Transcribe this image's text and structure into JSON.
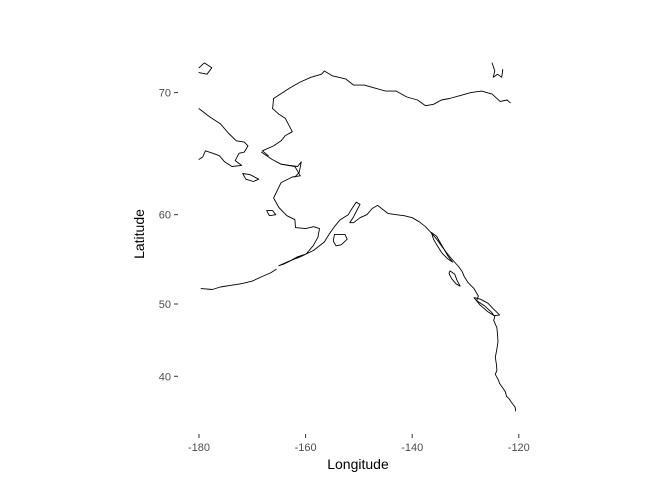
{
  "chart_data": {
    "type": "map",
    "projection": "mercator",
    "xlabel": "Longitude",
    "ylabel": "Latitude",
    "x_ticks": [
      -180,
      -160,
      -140,
      -120
    ],
    "y_ticks": [
      40,
      50,
      60,
      70
    ],
    "x_tick_labels": [
      "-180",
      "-160",
      "-140",
      "-120"
    ],
    "y_tick_labels": [
      "40",
      "50",
      "60",
      "70"
    ],
    "xlim": [
      -180,
      -120
    ],
    "ylim": [
      35,
      73
    ],
    "grid": false,
    "background": "#ffffff",
    "line_color": "#000000",
    "coastlines": [
      {
        "name": "alaska-mainland-pacific-coast",
        "lonlat": [
          [
            -168.3,
            65.6
          ],
          [
            -167.3,
            65.3
          ],
          [
            -166.3,
            65.0
          ],
          [
            -164.6,
            64.6
          ],
          [
            -162.0,
            64.4
          ],
          [
            -161.0,
            63.6
          ],
          [
            -162.5,
            63.5
          ],
          [
            -164.6,
            63.0
          ],
          [
            -166.0,
            61.6
          ],
          [
            -165.0,
            60.7
          ],
          [
            -163.5,
            59.9
          ],
          [
            -162.0,
            59.5
          ],
          [
            -161.9,
            58.7
          ],
          [
            -160.0,
            58.6
          ],
          [
            -158.5,
            58.8
          ],
          [
            -157.4,
            58.6
          ],
          [
            -157.7,
            57.7
          ],
          [
            -158.6,
            56.8
          ],
          [
            -159.9,
            55.9
          ],
          [
            -161.5,
            55.6
          ],
          [
            -163.0,
            55.1
          ],
          [
            -164.0,
            54.8
          ],
          [
            -165.0,
            54.6
          ],
          [
            -163.5,
            55.0
          ],
          [
            -161.0,
            55.6
          ],
          [
            -158.5,
            56.3
          ],
          [
            -156.5,
            57.2
          ],
          [
            -155.5,
            58.1
          ],
          [
            -154.6,
            58.8
          ],
          [
            -153.5,
            59.5
          ],
          [
            -152.0,
            60.0
          ],
          [
            -151.3,
            60.6
          ],
          [
            -150.5,
            61.2
          ],
          [
            -149.8,
            61.0
          ],
          [
            -150.3,
            60.5
          ],
          [
            -151.0,
            59.8
          ],
          [
            -151.7,
            59.2
          ],
          [
            -151.0,
            59.2
          ],
          [
            -149.8,
            59.7
          ],
          [
            -148.5,
            60.0
          ],
          [
            -147.5,
            60.6
          ],
          [
            -146.5,
            60.9
          ],
          [
            -145.5,
            60.5
          ],
          [
            -144.5,
            60.1
          ],
          [
            -143.0,
            60.0
          ],
          [
            -141.5,
            59.9
          ],
          [
            -140.0,
            59.7
          ],
          [
            -138.7,
            59.3
          ],
          [
            -137.5,
            58.8
          ],
          [
            -136.5,
            58.2
          ],
          [
            -135.4,
            57.5
          ],
          [
            -134.5,
            56.8
          ],
          [
            -133.5,
            56.0
          ],
          [
            -132.5,
            55.3
          ],
          [
            -131.3,
            54.5
          ],
          [
            -130.6,
            53.9
          ],
          [
            -130.2,
            53.3
          ],
          [
            -129.5,
            52.6
          ],
          [
            -128.4,
            51.9
          ],
          [
            -127.6,
            51.0
          ],
          [
            -127.9,
            50.4
          ],
          [
            -126.5,
            49.8
          ],
          [
            -125.2,
            49.0
          ],
          [
            -124.5,
            48.4
          ],
          [
            -124.7,
            47.9
          ],
          [
            -124.1,
            46.9
          ],
          [
            -124.0,
            46.0
          ],
          [
            -123.9,
            45.0
          ],
          [
            -124.1,
            44.0
          ],
          [
            -124.4,
            42.8
          ],
          [
            -124.2,
            41.8
          ],
          [
            -124.1,
            40.9
          ],
          [
            -124.4,
            40.3
          ],
          [
            -123.8,
            39.4
          ],
          [
            -123.6,
            38.9
          ],
          [
            -122.9,
            38.1
          ],
          [
            -122.5,
            37.6
          ],
          [
            -122.3,
            36.9
          ],
          [
            -121.9,
            36.6
          ],
          [
            -121.4,
            36.0
          ],
          [
            -120.7,
            35.2
          ],
          [
            -120.6,
            34.6
          ]
        ]
      },
      {
        "name": "alaska-arctic-coast",
        "lonlat": [
          [
            -166.2,
            68.9
          ],
          [
            -166.0,
            69.6
          ],
          [
            -163.0,
            70.3
          ],
          [
            -161.0,
            70.7
          ],
          [
            -159.0,
            71.0
          ],
          [
            -157.0,
            71.2
          ],
          [
            -156.5,
            71.4
          ],
          [
            -155.0,
            71.1
          ],
          [
            -152.5,
            70.9
          ],
          [
            -151.0,
            70.5
          ],
          [
            -149.0,
            70.5
          ],
          [
            -147.0,
            70.3
          ],
          [
            -145.0,
            70.1
          ],
          [
            -143.0,
            70.1
          ],
          [
            -141.0,
            69.7
          ],
          [
            -139.0,
            69.5
          ],
          [
            -137.5,
            69.1
          ],
          [
            -136.0,
            69.2
          ],
          [
            -134.5,
            69.5
          ],
          [
            -133.0,
            69.6
          ],
          [
            -131.0,
            69.8
          ],
          [
            -129.0,
            70.0
          ],
          [
            -127.0,
            70.1
          ],
          [
            -125.0,
            69.9
          ],
          [
            -123.5,
            69.4
          ],
          [
            -122.2,
            69.5
          ],
          [
            -121.6,
            69.3
          ]
        ]
      },
      {
        "name": "chukchi-west-coast",
        "lonlat": [
          [
            -166.2,
            68.9
          ],
          [
            -165.0,
            68.5
          ],
          [
            -163.8,
            68.2
          ],
          [
            -162.5,
            67.2
          ],
          [
            -163.8,
            66.9
          ],
          [
            -164.6,
            66.5
          ],
          [
            -166.0,
            66.1
          ],
          [
            -168.1,
            65.7
          ],
          [
            -167.0,
            65.3
          ]
        ]
      },
      {
        "name": "norton-sound",
        "lonlat": [
          [
            -164.6,
            64.6
          ],
          [
            -163.0,
            64.5
          ],
          [
            -161.5,
            64.4
          ],
          [
            -160.8,
            64.8
          ],
          [
            -161.2,
            63.9
          ],
          [
            -162.0,
            63.5
          ]
        ]
      },
      {
        "name": "chukotka-peninsula",
        "lonlat": [
          [
            -180.0,
            68.9
          ],
          [
            -178.0,
            68.3
          ],
          [
            -176.0,
            67.8
          ],
          [
            -174.5,
            67.1
          ],
          [
            -173.0,
            66.5
          ],
          [
            -171.5,
            66.4
          ],
          [
            -170.8,
            66.1
          ],
          [
            -171.5,
            65.6
          ],
          [
            -172.5,
            65.5
          ],
          [
            -173.2,
            64.9
          ],
          [
            -172.0,
            64.5
          ],
          [
            -173.8,
            64.4
          ],
          [
            -175.2,
            64.8
          ],
          [
            -176.2,
            65.3
          ],
          [
            -177.4,
            65.5
          ],
          [
            -178.8,
            65.7
          ],
          [
            -179.3,
            65.2
          ],
          [
            -180.0,
            65.0
          ]
        ]
      },
      {
        "name": "wrangel-island",
        "lonlat": [
          [
            -180.0,
            71.6
          ],
          [
            -179.0,
            71.9
          ],
          [
            -177.6,
            71.6
          ],
          [
            -178.5,
            71.2
          ],
          [
            -180.0,
            71.3
          ]
        ]
      },
      {
        "name": "st-lawrence-island",
        "lonlat": [
          [
            -171.8,
            63.8
          ],
          [
            -170.4,
            63.7
          ],
          [
            -168.8,
            63.3
          ],
          [
            -169.8,
            63.1
          ],
          [
            -171.2,
            63.3
          ],
          [
            -171.8,
            63.8
          ]
        ]
      },
      {
        "name": "nunivak-island",
        "lonlat": [
          [
            -167.3,
            60.4
          ],
          [
            -166.2,
            60.4
          ],
          [
            -165.6,
            60.0
          ],
          [
            -166.8,
            59.9
          ],
          [
            -167.3,
            60.4
          ]
        ]
      },
      {
        "name": "kodiak-island",
        "lonlat": [
          [
            -154.6,
            58.0
          ],
          [
            -152.6,
            58.0
          ],
          [
            -152.2,
            57.5
          ],
          [
            -153.3,
            56.9
          ],
          [
            -154.3,
            56.8
          ],
          [
            -154.8,
            57.3
          ],
          [
            -154.6,
            58.0
          ]
        ]
      },
      {
        "name": "aleutian-islands",
        "lonlat": [
          [
            -179.6,
            51.9
          ],
          [
            -177.5,
            51.8
          ],
          [
            -176.0,
            52.1
          ],
          [
            -174.0,
            52.3
          ],
          [
            -172.0,
            52.5
          ],
          [
            -170.0,
            52.8
          ],
          [
            -168.0,
            53.4
          ],
          [
            -166.5,
            53.8
          ],
          [
            -165.5,
            54.2
          ]
        ]
      },
      {
        "name": "vancouver-island",
        "lonlat": [
          [
            -128.4,
            50.8
          ],
          [
            -127.2,
            50.6
          ],
          [
            -125.8,
            50.1
          ],
          [
            -124.8,
            49.4
          ],
          [
            -123.6,
            48.6
          ],
          [
            -124.6,
            48.5
          ],
          [
            -125.8,
            49.0
          ],
          [
            -127.3,
            49.9
          ],
          [
            -128.4,
            50.8
          ]
        ]
      },
      {
        "name": "haida-gwaii",
        "lonlat": [
          [
            -132.9,
            54.0
          ],
          [
            -132.0,
            53.6
          ],
          [
            -131.6,
            52.9
          ],
          [
            -131.0,
            52.2
          ],
          [
            -131.8,
            52.5
          ],
          [
            -132.6,
            53.1
          ],
          [
            -133.1,
            53.7
          ],
          [
            -132.9,
            54.0
          ]
        ]
      },
      {
        "name": "alexander-archipelago",
        "lonlat": [
          [
            -136.4,
            58.2
          ],
          [
            -135.4,
            57.8
          ],
          [
            -134.8,
            57.2
          ],
          [
            -134.0,
            56.4
          ],
          [
            -133.2,
            55.6
          ],
          [
            -132.4,
            55.0
          ],
          [
            -133.4,
            55.4
          ],
          [
            -134.4,
            56.0
          ],
          [
            -135.3,
            56.8
          ],
          [
            -136.0,
            57.5
          ],
          [
            -136.4,
            58.2
          ]
        ]
      },
      {
        "name": "banks-island-coast",
        "lonlat": [
          [
            -125.0,
            71.9
          ],
          [
            -124.5,
            71.4
          ],
          [
            -124.8,
            71.0
          ],
          [
            -124.0,
            71.2
          ],
          [
            -123.2,
            71.0
          ],
          [
            -123.0,
            71.5
          ]
        ]
      }
    ]
  }
}
